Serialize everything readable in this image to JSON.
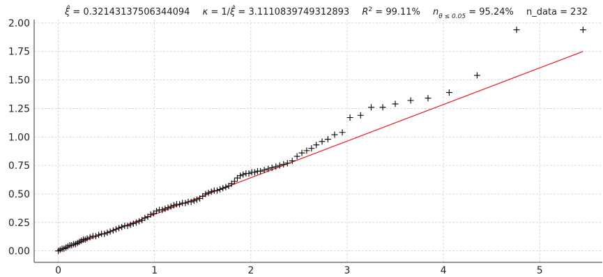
{
  "chart_data": {
    "type": "scatter",
    "title": {
      "xi_hat": "0.32143137506344094",
      "kappa": "3.1110839749312893",
      "r2": "99.11%",
      "n_theta": "95.24%",
      "n_data": "232"
    },
    "xlim": [
      -0.25,
      5.65
    ],
    "ylim": [
      -0.1,
      2.03
    ],
    "x_ticks": [
      0,
      1,
      2,
      3,
      4,
      5
    ],
    "x_tick_labels": [
      "0",
      "1",
      "2",
      "3",
      "4",
      "5"
    ],
    "y_ticks": [
      0.0,
      0.25,
      0.5,
      0.75,
      1.0,
      1.25,
      1.5,
      1.75,
      2.0
    ],
    "y_tick_labels": [
      "0.00",
      "0.25",
      "0.50",
      "0.75",
      "1.00",
      "1.25",
      "1.50",
      "1.75",
      "2.00"
    ],
    "grid": true,
    "series": [
      {
        "marker": "+",
        "color": "#000000",
        "x": [
          0.0,
          0.02,
          0.04,
          0.06,
          0.08,
          0.1,
          0.12,
          0.14,
          0.16,
          0.18,
          0.2,
          0.22,
          0.24,
          0.26,
          0.28,
          0.3,
          0.33,
          0.36,
          0.39,
          0.42,
          0.45,
          0.48,
          0.51,
          0.54,
          0.57,
          0.6,
          0.63,
          0.66,
          0.69,
          0.72,
          0.75,
          0.78,
          0.81,
          0.84,
          0.87,
          0.9,
          0.93,
          0.96,
          0.99,
          1.02,
          1.05,
          1.08,
          1.11,
          1.14,
          1.17,
          1.2,
          1.23,
          1.26,
          1.29,
          1.32,
          1.35,
          1.38,
          1.41,
          1.44,
          1.47,
          1.5,
          1.53,
          1.56,
          1.59,
          1.62,
          1.65,
          1.68,
          1.71,
          1.74,
          1.77,
          1.8,
          1.83,
          1.86,
          1.89,
          1.92,
          1.95,
          1.98,
          2.01,
          2.04,
          2.07,
          2.1,
          2.14,
          2.18,
          2.22,
          2.26,
          2.3,
          2.34,
          2.38,
          2.43,
          2.48,
          2.53,
          2.58,
          2.63,
          2.68,
          2.74,
          2.8,
          2.87,
          2.95,
          3.03,
          3.14,
          3.25,
          3.37,
          3.5,
          3.66,
          3.84,
          4.06,
          4.35,
          4.76,
          5.45
        ],
        "y": [
          0.0,
          0.01,
          0.02,
          0.02,
          0.03,
          0.04,
          0.05,
          0.05,
          0.06,
          0.06,
          0.07,
          0.08,
          0.09,
          0.1,
          0.1,
          0.11,
          0.12,
          0.13,
          0.13,
          0.14,
          0.15,
          0.15,
          0.16,
          0.17,
          0.18,
          0.19,
          0.2,
          0.21,
          0.22,
          0.22,
          0.23,
          0.24,
          0.25,
          0.26,
          0.27,
          0.29,
          0.3,
          0.32,
          0.33,
          0.35,
          0.36,
          0.36,
          0.37,
          0.38,
          0.39,
          0.4,
          0.41,
          0.41,
          0.42,
          0.42,
          0.43,
          0.43,
          0.44,
          0.45,
          0.46,
          0.48,
          0.5,
          0.51,
          0.52,
          0.53,
          0.53,
          0.54,
          0.55,
          0.56,
          0.57,
          0.59,
          0.61,
          0.64,
          0.66,
          0.67,
          0.68,
          0.68,
          0.69,
          0.69,
          0.7,
          0.7,
          0.71,
          0.72,
          0.73,
          0.74,
          0.75,
          0.76,
          0.77,
          0.79,
          0.83,
          0.86,
          0.88,
          0.9,
          0.93,
          0.96,
          0.98,
          1.02,
          1.04,
          1.17,
          1.19,
          1.26,
          1.26,
          1.29,
          1.32,
          1.34,
          1.39,
          1.54,
          1.94,
          1.94
        ]
      },
      {
        "type": "line",
        "color": "#e8262b",
        "x": [
          0.0,
          5.45
        ],
        "y": [
          0.0,
          1.75
        ]
      }
    ]
  }
}
